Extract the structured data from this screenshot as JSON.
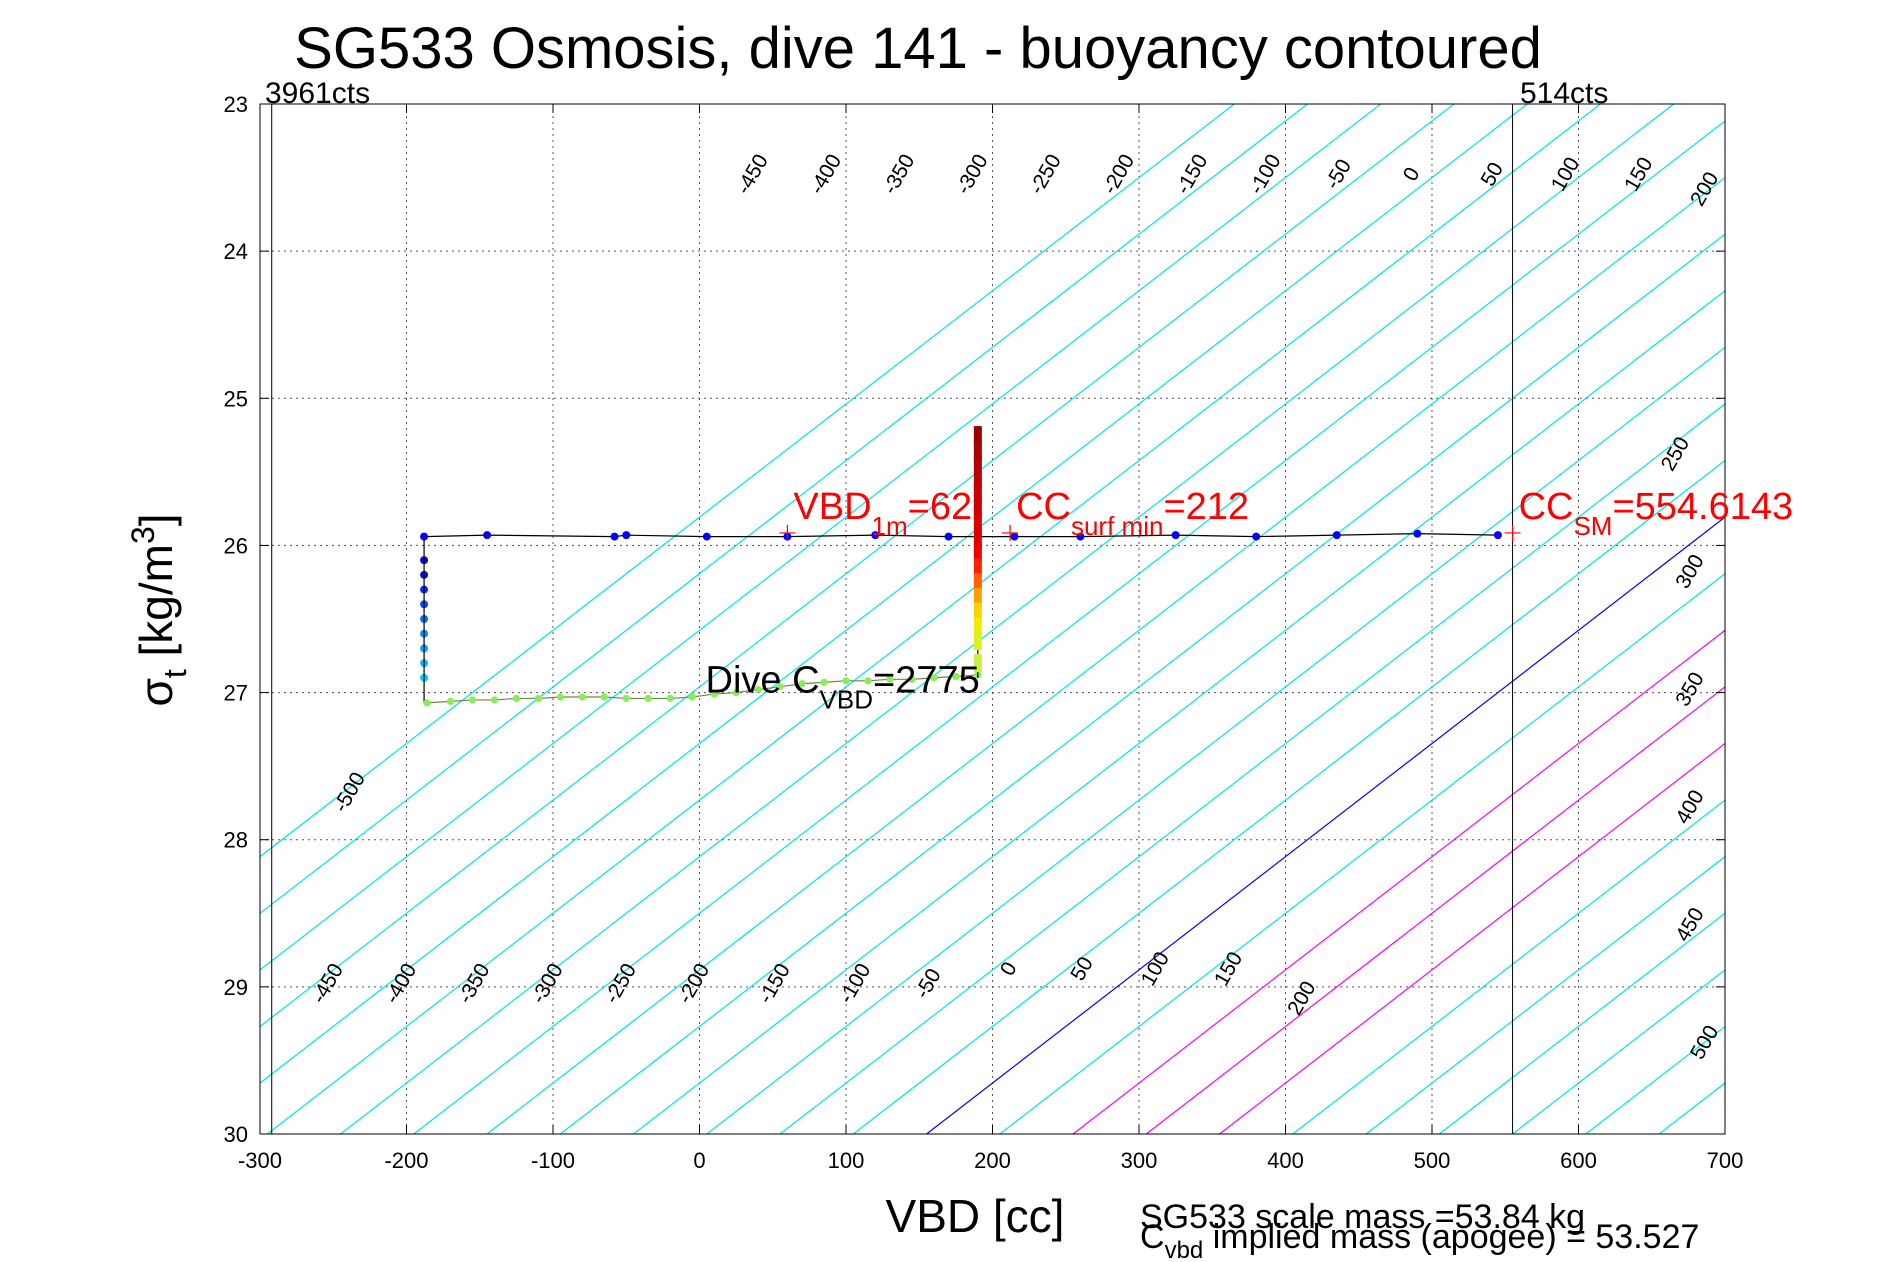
{
  "chart_data": {
    "type": "scatter",
    "title": "SG533 Osmosis, dive 141 - buoyancy contoured",
    "xlabel": "VBD [cc]",
    "ylabel": {
      "main": "σ",
      "sub": "t",
      "unit": " [kg/m",
      "sup": "3",
      "close": "]"
    },
    "xlim": [
      -300,
      700
    ],
    "ylim": [
      23,
      30
    ],
    "y_reversed": true,
    "grid": true,
    "xticks": [
      -300,
      -200,
      -100,
      0,
      100,
      200,
      300,
      400,
      500,
      600,
      700
    ],
    "yticks": [
      23,
      24,
      25,
      26,
      27,
      28,
      29,
      30
    ],
    "top_labels": {
      "left": "3961cts",
      "right": "514cts"
    },
    "vertical_lines": [
      -292,
      555
    ],
    "colors": {
      "contour": "#00e5e5",
      "zero_contour": "#0000ff",
      "mass_contour": "#ff00ff",
      "annot": "#ff0000"
    },
    "contours": {
      "levels": [
        -500,
        -450,
        -400,
        -350,
        -300,
        -250,
        -200,
        -150,
        -100,
        -50,
        0,
        50,
        100,
        150,
        200,
        250,
        300,
        350,
        400,
        450,
        500
      ],
      "zero_x_at_30": 155,
      "slope_cc_per_sigma": 130,
      "spacing_cc": 50,
      "mass_levels": [
        100,
        150,
        200
      ]
    },
    "contour_labels": {
      "top": [
        {
          "text": "-450",
          "x": 40,
          "y": 23.5
        },
        {
          "text": "-400",
          "x": 90,
          "y": 23.5
        },
        {
          "text": "-350",
          "x": 140,
          "y": 23.5
        },
        {
          "text": "-300",
          "x": 190,
          "y": 23.5
        },
        {
          "text": "-250",
          "x": 240,
          "y": 23.5
        },
        {
          "text": "-200",
          "x": 290,
          "y": 23.5
        },
        {
          "text": "-150",
          "x": 340,
          "y": 23.5
        },
        {
          "text": "-100",
          "x": 390,
          "y": 23.5
        },
        {
          "text": "-50",
          "x": 440,
          "y": 23.5
        },
        {
          "text": "0",
          "x": 490,
          "y": 23.5
        },
        {
          "text": "50",
          "x": 545,
          "y": 23.5
        },
        {
          "text": "100",
          "x": 595,
          "y": 23.5
        },
        {
          "text": "150",
          "x": 645,
          "y": 23.5
        },
        {
          "text": "200",
          "x": 690,
          "y": 23.6
        }
      ],
      "right": [
        {
          "text": "250",
          "x": 670,
          "y": 25.4
        },
        {
          "text": "300",
          "x": 680,
          "y": 26.2
        },
        {
          "text": "350",
          "x": 680,
          "y": 27.0
        },
        {
          "text": "400",
          "x": 680,
          "y": 27.8
        },
        {
          "text": "450",
          "x": 680,
          "y": 28.6
        },
        {
          "text": "500",
          "x": 690,
          "y": 29.4
        }
      ],
      "left": [
        {
          "text": "-500",
          "x": -235,
          "y": 27.7
        }
      ],
      "bottom": [
        {
          "text": "-450",
          "x": -250,
          "y": 29.0
        },
        {
          "text": "-400",
          "x": -200,
          "y": 29.0
        },
        {
          "text": "-350",
          "x": -150,
          "y": 29.0
        },
        {
          "text": "-300",
          "x": -100,
          "y": 29.0
        },
        {
          "text": "-250",
          "x": -50,
          "y": 29.0
        },
        {
          "text": "-200",
          "x": 0,
          "y": 29.0
        },
        {
          "text": "-150",
          "x": 55,
          "y": 29.0
        },
        {
          "text": "-100",
          "x": 110,
          "y": 29.0
        },
        {
          "text": "-50",
          "x": 160,
          "y": 29.0
        },
        {
          "text": "0",
          "x": 215,
          "y": 28.9
        },
        {
          "text": "50",
          "x": 265,
          "y": 28.9
        },
        {
          "text": "100",
          "x": 315,
          "y": 28.9
        },
        {
          "text": "150",
          "x": 365,
          "y": 28.9
        },
        {
          "text": "200",
          "x": 415,
          "y": 29.1
        }
      ]
    },
    "series": [
      {
        "name": "apogee blue pts",
        "color": "#0000ff",
        "x": [
          -188,
          -145,
          -58,
          -50,
          5,
          60,
          120,
          170,
          215,
          260,
          325,
          380,
          435,
          490,
          545
        ],
        "y": [
          25.94,
          25.93,
          25.94,
          25.93,
          25.94,
          25.94,
          25.93,
          25.94,
          25.94,
          25.94,
          25.93,
          25.94,
          25.93,
          25.92,
          25.93
        ]
      },
      {
        "name": "dive descent",
        "color": "#0000dd",
        "x": [
          -188,
          -188,
          -188,
          -188,
          -188,
          -188,
          -188,
          -188,
          -188
        ],
        "y": [
          26.1,
          26.2,
          26.3,
          26.4,
          26.5,
          26.6,
          26.7,
          26.8,
          26.9
        ]
      },
      {
        "name": "apogee green pts",
        "color": "#88ee55",
        "x": [
          -186,
          -170,
          -155,
          -140,
          -125,
          -110,
          -95,
          -80,
          -65,
          -50,
          -35,
          -20,
          -5,
          10,
          25,
          40,
          55,
          70,
          85,
          100,
          115,
          130,
          145,
          160,
          175,
          190
        ],
        "y": [
          27.07,
          27.06,
          27.05,
          27.05,
          27.04,
          27.04,
          27.03,
          27.03,
          27.03,
          27.04,
          27.04,
          27.04,
          27.03,
          27.01,
          27.0,
          26.98,
          26.96,
          26.94,
          26.93,
          26.92,
          26.92,
          26.91,
          26.91,
          26.9,
          26.89,
          26.88
        ]
      },
      {
        "name": "climb",
        "color": "#cc0000",
        "x": [
          190,
          190,
          190,
          190,
          190,
          190,
          190,
          190,
          190,
          190,
          190,
          190,
          190,
          190,
          190,
          190
        ],
        "y": [
          25.25,
          25.35,
          25.45,
          25.55,
          25.65,
          25.75,
          25.85,
          25.95,
          26.05,
          26.15,
          26.25,
          26.35,
          26.45,
          26.55,
          26.65,
          26.8
        ]
      }
    ],
    "annotations": [
      {
        "name": "vbd-1m",
        "color": "#ff0000",
        "text": "VBD",
        "sub": "1m",
        "tail": "=62",
        "x": 60,
        "y": 25.82
      },
      {
        "name": "cc-surf-min",
        "color": "#ff0000",
        "text": "CC",
        "sub": "surf min",
        "tail": "=212",
        "x": 212,
        "y": 25.82
      },
      {
        "name": "cc-sm",
        "color": "#ff0000",
        "text": "CC",
        "sub": "SM",
        "tail": "=554.6143",
        "x": 555,
        "y": 25.82
      },
      {
        "name": "dive-cvbd",
        "color": "#000000",
        "text": "Dive C",
        "sub": "VBD",
        "tail": "=2775",
        "x": 0,
        "y": 27.0
      }
    ],
    "footer": {
      "scale_mass": "SG533 scale mass =53.84 kg",
      "implied_c": "C",
      "implied_sub": "vbd",
      "implied_tail": " implied mass (apogee) = 53.527"
    }
  }
}
